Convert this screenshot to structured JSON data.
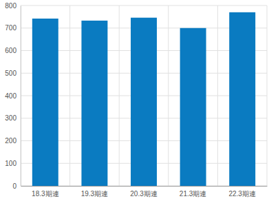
{
  "chart_data": {
    "type": "bar",
    "categories": [
      "18.3期連",
      "19.3期連",
      "20.3期連",
      "21.3期連",
      "22.3期連"
    ],
    "values": [
      742,
      733,
      746,
      700,
      770
    ],
    "color": "#0a7bc1",
    "ylim": [
      0,
      800
    ],
    "yticks": [
      0,
      100,
      200,
      300,
      400,
      500,
      600,
      700,
      800
    ],
    "grid": true
  }
}
